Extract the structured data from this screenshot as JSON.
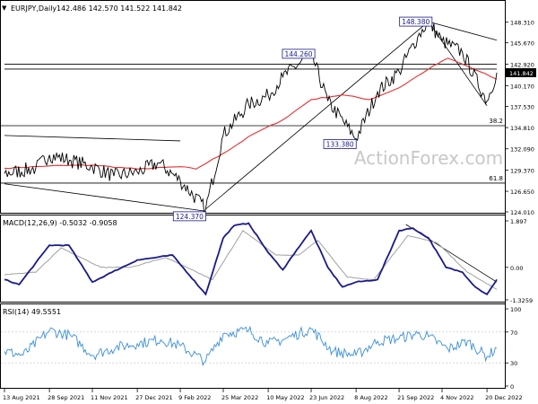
{
  "colors": {
    "price_line": "#000000",
    "moving_average": "#e8302e",
    "macd_line": "#1a1a8c",
    "signal_line": "#a0a0a0",
    "rsi_line": "#3a8fd8",
    "annotation_box_border": "#1a1a8c",
    "price_box_bg": "#000000",
    "watermark": "#c8c8c8"
  },
  "header": {
    "symbol_timeframe": "EURJPY,Daily",
    "ohlc": "142.486 142.570 141.522 141.842",
    "watermark": "ActionForex.com"
  },
  "current_price_label": "141.842",
  "chart_data": [
    {
      "type": "line",
      "panel": "price",
      "ylim": [
        124.01,
        149.77
      ],
      "y_ticks": [
        "148.310",
        "145.670",
        "142.920",
        "140.170",
        "137.530",
        "134.810",
        "132.090",
        "129.370",
        "126.650",
        "124.010"
      ],
      "x_ticks": [
        "13 Aug 2021",
        "28 Sep 2021",
        "11 Nov 2021",
        "27 Dec 2021",
        "9 Feb 2022",
        "25 Mar 2022",
        "10 May 2022",
        "23 Jun 2022",
        "8 Aug 2022",
        "21 Sep 2022",
        "4 Nov 2022",
        "20 Dec 2022"
      ],
      "series": [
        {
          "role": "price",
          "x": [
            "2021-08-13",
            "2021-09-14",
            "2021-09-28",
            "2021-10-20",
            "2021-11-11",
            "2021-12-03",
            "2021-12-27",
            "2022-01-18",
            "2022-02-09",
            "2022-03-07",
            "2022-03-25",
            "2022-04-20",
            "2022-05-10",
            "2022-05-25",
            "2022-06-23",
            "2022-07-10",
            "2022-08-08",
            "2022-08-30",
            "2022-09-21",
            "2022-10-10",
            "2022-10-21",
            "2022-11-04",
            "2022-11-25",
            "2022-12-20",
            "2022-12-30"
          ],
          "values": [
            128.9,
            129.6,
            131.3,
            130.6,
            129.8,
            128.6,
            129.1,
            130.3,
            128.0,
            124.37,
            133.9,
            137.8,
            138.9,
            141.3,
            144.26,
            138.2,
            133.38,
            139.4,
            142.0,
            146.4,
            148.38,
            145.9,
            144.4,
            138.2,
            141.842
          ]
        },
        {
          "role": "moving_average",
          "x": [
            "2021-08-13",
            "2021-09-28",
            "2021-11-11",
            "2021-12-27",
            "2022-02-09",
            "2022-02-25",
            "2022-03-25",
            "2022-04-25",
            "2022-05-25",
            "2022-06-23",
            "2022-07-25",
            "2022-08-22",
            "2022-09-21",
            "2022-10-21",
            "2022-11-10",
            "2022-12-01",
            "2022-12-30"
          ],
          "values": [
            129.6,
            129.9,
            130.0,
            129.5,
            129.8,
            129.5,
            131.5,
            134.0,
            135.8,
            138.4,
            139.0,
            138.4,
            139.9,
            142.3,
            143.7,
            142.6,
            141.0
          ]
        }
      ],
      "price_labels": [
        "148.380",
        "144.260",
        "133.380",
        "124.370"
      ],
      "fibonacci": [
        {
          "label": "38.2",
          "value": 135.05
        },
        {
          "label": "61.8",
          "value": 127.7
        }
      ],
      "trendlines": [
        {
          "from": [
            "2021-08-13",
            133.8
          ],
          "to": [
            "2022-02-09",
            133.1
          ]
        },
        {
          "from": [
            "2021-08-13",
            127.6
          ],
          "to": [
            "2022-03-07",
            124.1
          ]
        },
        {
          "from": [
            "2022-03-07",
            124.37
          ],
          "to": [
            "2022-10-21",
            148.38
          ]
        },
        {
          "from": [
            "2022-10-21",
            148.38
          ],
          "to": [
            "2022-12-30",
            146.0
          ]
        },
        {
          "from": [
            "2022-10-21",
            148.38
          ],
          "to": [
            "2022-12-20",
            137.6
          ]
        },
        {
          "from": [
            "2021-08-13",
            142.92
          ],
          "to": [
            "2022-12-30",
            142.92
          ]
        },
        {
          "from": [
            "2021-08-13",
            142.3
          ],
          "to": [
            "2022-12-30",
            142.3
          ]
        }
      ]
    },
    {
      "type": "line",
      "panel": "macd",
      "title": "MACD(12,26,9) -0.5032 -0.9058",
      "ylim": [
        -1.3259,
        1.897
      ],
      "y_ticks": [
        "1.897",
        "0.00",
        "-1.3259"
      ],
      "series": [
        {
          "role": "macd",
          "x": [
            "2021-08-13",
            "2021-08-28",
            "2021-09-28",
            "2021-10-18",
            "2021-11-11",
            "2021-12-01",
            "2021-12-27",
            "2022-01-15",
            "2022-02-01",
            "2022-03-07",
            "2022-03-25",
            "2022-04-05",
            "2022-04-20",
            "2022-05-10",
            "2022-05-25",
            "2022-06-08",
            "2022-06-23",
            "2022-07-10",
            "2022-07-25",
            "2022-08-08",
            "2022-08-30",
            "2022-09-21",
            "2022-10-05",
            "2022-10-21",
            "2022-11-08",
            "2022-11-25",
            "2022-12-08",
            "2022-12-20",
            "2022-12-30"
          ],
          "values": [
            -0.5,
            -0.7,
            0.9,
            0.9,
            -0.6,
            -0.2,
            0.3,
            0.4,
            0.5,
            -1.1,
            1.2,
            1.7,
            1.8,
            0.6,
            -0.1,
            0.7,
            1.5,
            0.0,
            -0.8,
            -0.6,
            -0.5,
            1.5,
            1.6,
            1.2,
            0.0,
            -0.2,
            -0.8,
            -1.1,
            -0.5
          ]
        },
        {
          "role": "signal",
          "x": [
            "2021-08-13",
            "2021-09-14",
            "2021-10-10",
            "2021-11-20",
            "2021-12-20",
            "2022-01-25",
            "2022-03-14",
            "2022-04-14",
            "2022-05-18",
            "2022-06-10",
            "2022-06-30",
            "2022-07-30",
            "2022-08-26",
            "2022-09-30",
            "2022-10-30",
            "2022-11-30",
            "2022-12-30"
          ],
          "values": [
            -0.3,
            -0.2,
            0.8,
            0.0,
            0.0,
            0.4,
            -0.5,
            1.5,
            0.5,
            0.5,
            1.1,
            -0.4,
            -0.5,
            1.3,
            1.0,
            -0.2,
            -0.9
          ]
        }
      ],
      "trendlines": [
        {
          "from": [
            "2022-09-28",
            1.75
          ],
          "to": [
            "2022-12-30",
            -0.6
          ]
        }
      ]
    },
    {
      "type": "line",
      "panel": "rsi",
      "title": "RSI(14) 49.5551",
      "ylim": [
        0,
        100
      ],
      "y_ticks": [
        "100",
        "70",
        "30",
        "0"
      ],
      "series": [
        {
          "role": "rsi",
          "x": [
            "2021-08-13",
            "2021-09-01",
            "2021-09-28",
            "2021-10-20",
            "2021-11-11",
            "2021-12-05",
            "2021-12-27",
            "2022-01-20",
            "2022-02-09",
            "2022-03-07",
            "2022-03-25",
            "2022-04-20",
            "2022-05-10",
            "2022-05-25",
            "2022-06-23",
            "2022-07-15",
            "2022-08-08",
            "2022-08-30",
            "2022-09-21",
            "2022-10-10",
            "2022-10-21",
            "2022-11-10",
            "2022-11-30",
            "2022-12-20",
            "2022-12-30"
          ],
          "values": [
            45,
            40,
            72,
            65,
            40,
            50,
            55,
            60,
            52,
            32,
            68,
            72,
            55,
            60,
            74,
            45,
            40,
            58,
            62,
            68,
            64,
            48,
            58,
            38,
            49.5551
          ]
        }
      ]
    }
  ]
}
